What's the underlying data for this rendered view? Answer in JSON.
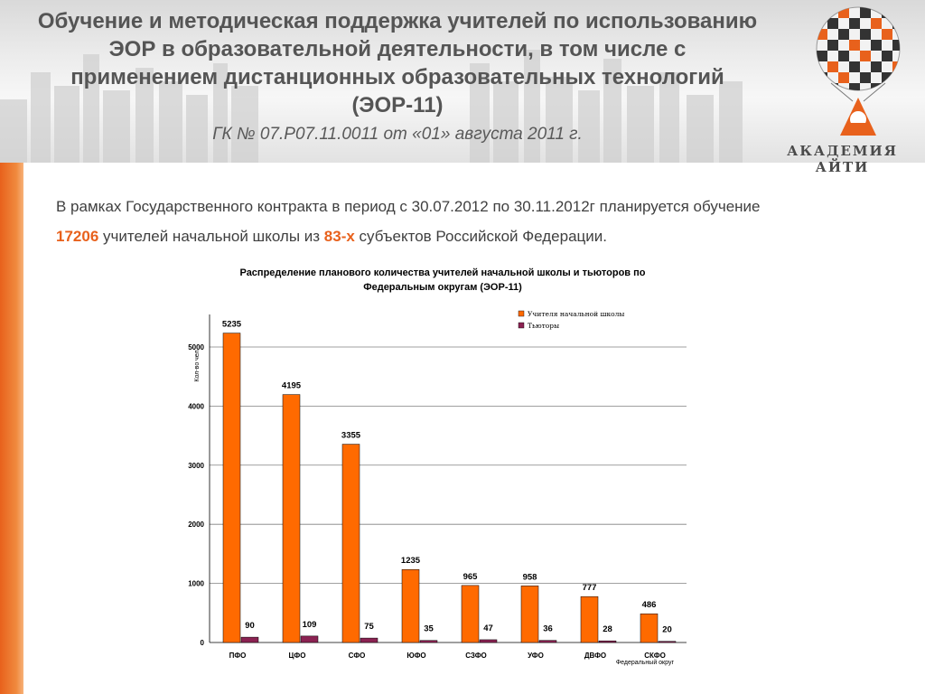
{
  "header": {
    "title": "Обучение и методическая поддержка учителей по использованию ЭОР в образовательной деятельности, в том числе с применением дистанционных образовательных технологий (ЭОР-11)",
    "contract": "ГК  № 07.Р07.11.0011 от «01» августа 2011 г.",
    "brand": "АКАДЕМИЯ  АЙТИ"
  },
  "intro": {
    "line1": "В рамках Государственного контракта в период с 30.07.2012 по 30.11.2012г планируется обучение",
    "count": "17206",
    "text_mid": " учителей начальной школы из ",
    "regions": "83-х",
    "text_end": " субъектов Российской Федерации."
  },
  "colors": {
    "accent": "#e8611c",
    "series_teachers": "#ff6a00",
    "series_tutors": "#8b2252"
  },
  "chart_data": {
    "type": "bar",
    "title": "Распределение планового количества учителей начальной школы и тьюторов по Федеральным округам (ЭОР-11)",
    "categories": [
      "ПФО",
      "ЦФО",
      "СФО",
      "ЮФО",
      "СЗФО",
      "УФО",
      "ДВФО",
      "СКФО"
    ],
    "series": [
      {
        "name": "Учителя начальной школы",
        "values": [
          5235,
          4195,
          3355,
          1235,
          965,
          958,
          777,
          486
        ]
      },
      {
        "name": "Тьюторы",
        "values": [
          90,
          109,
          75,
          35,
          47,
          36,
          28,
          20
        ]
      }
    ],
    "xlabel": "Федеральный округ",
    "ylabel": "Кол-во чел",
    "ylim": [
      0,
      5000
    ],
    "yticks": [
      0,
      1000,
      2000,
      3000,
      4000,
      5000
    ],
    "grid": true,
    "legend": "top-right"
  }
}
